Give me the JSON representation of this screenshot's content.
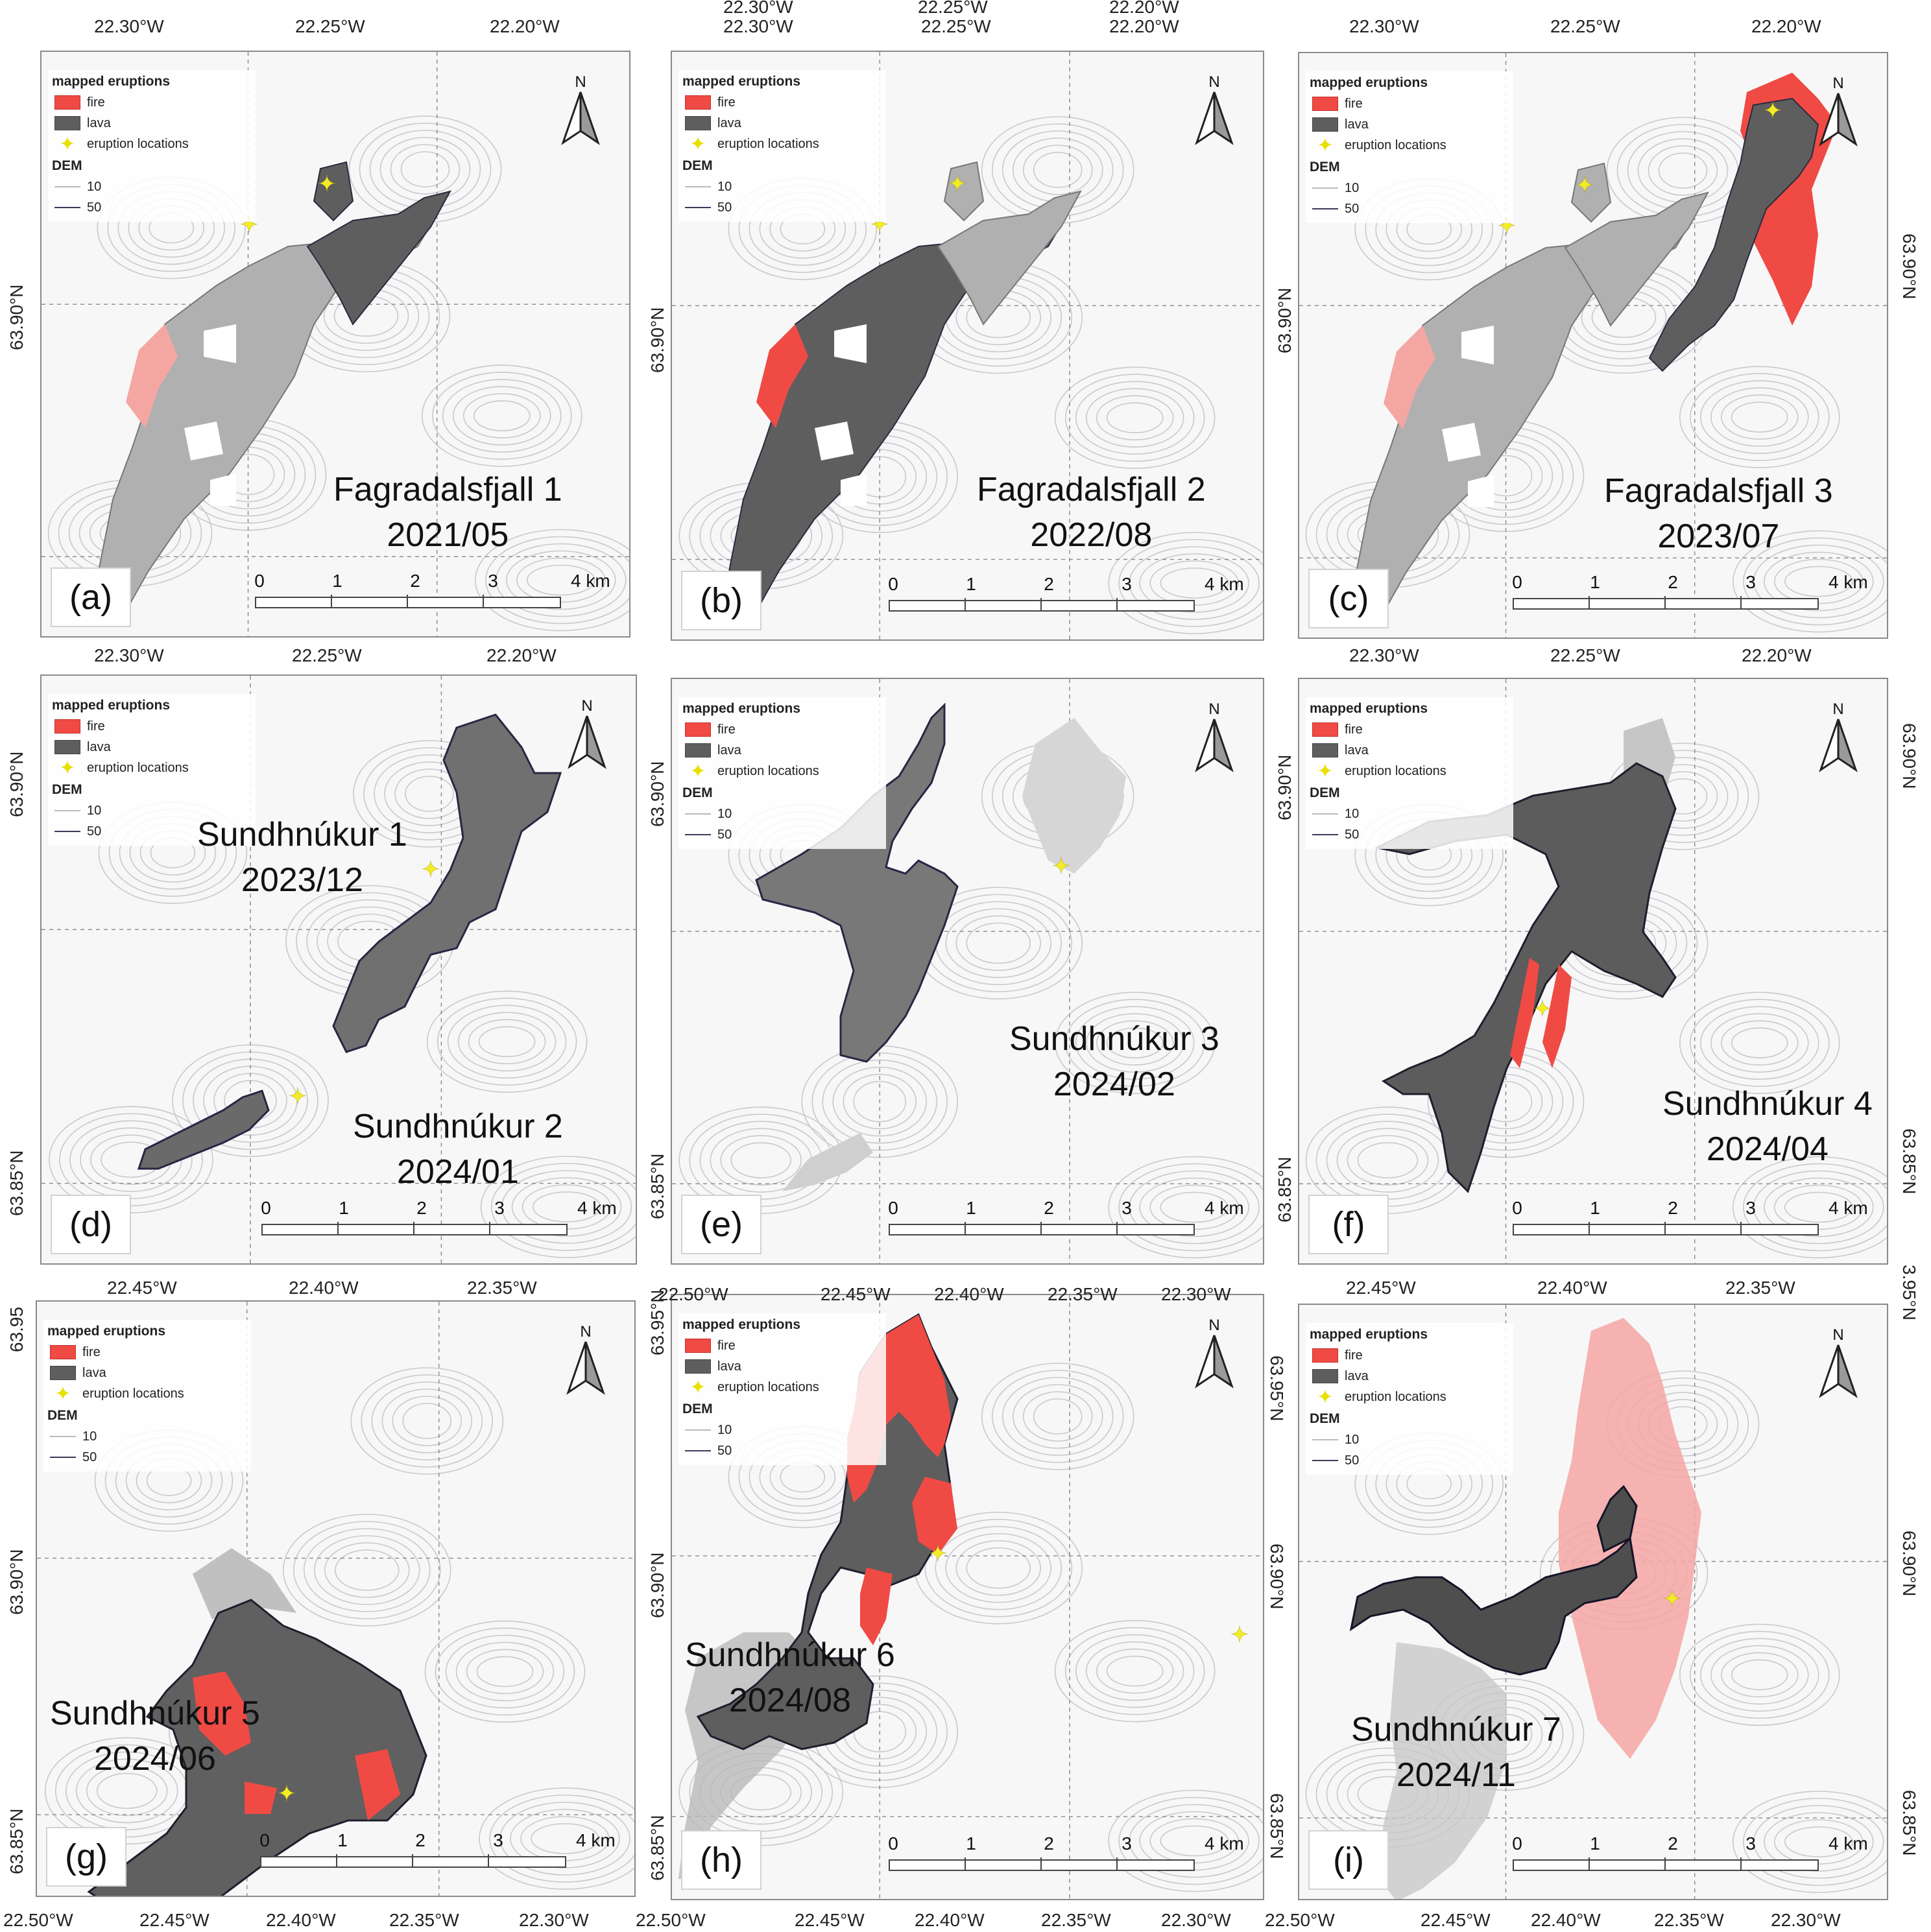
{
  "legend": {
    "heading": "mapped eruptions",
    "fire": "fire",
    "lava": "lava",
    "eruption_locations": "eruption locations",
    "dem_heading": "DEM",
    "dem_10": "10",
    "dem_50": "50"
  },
  "north_label": "N",
  "scale": {
    "t0": "0",
    "t1": "1",
    "t2": "2",
    "t3": "3",
    "t4": "4 km"
  },
  "colors": {
    "fire": "#f04a45",
    "lava": "#5e5e5e",
    "eruption_marker": "#f2ec28",
    "contour": "#c8c8d0"
  },
  "panels": [
    {
      "letter": "(a)",
      "name": "Fagradalsfjall 1",
      "date": "2021/05",
      "top_lon": [
        "22.30°W",
        "22.25°W",
        "22.20°W"
      ],
      "bottom_lon": [
        "22.30°W",
        "22.25°W",
        "22.20°W"
      ],
      "left_lat": [
        "63.90°N"
      ],
      "right_lat": []
    },
    {
      "letter": "(b)",
      "name": "Fagradalsfjall 2",
      "date": "2022/08",
      "top_lon": [
        "22.30°W",
        "22.25°W",
        "22.20°W"
      ],
      "bottom_lon": [
        "22.30°W",
        "22.25°W",
        "22.20°W"
      ],
      "left_lat": [
        "63.90°N"
      ],
      "right_lat": []
    },
    {
      "letter": "(c)",
      "name": "Fagradalsfjall 3",
      "date": "2023/07",
      "top_lon": [
        "22.30°W",
        "22.25°W",
        "22.20°W"
      ],
      "bottom_lon": [
        "22.30°W",
        "22.25°W",
        "22.20°W"
      ],
      "left_lat": [
        "63.90°N"
      ],
      "right_lat": [
        "63.90°N"
      ]
    },
    {
      "letter": "(d)",
      "name": "Sundhnúkur 1",
      "date": "2023/12",
      "name2": "Sundhnúkur 2",
      "date2": "2024/01",
      "top_lon": [],
      "bottom_lon": [
        "22.45°W",
        "22.40°W",
        "22.35°W"
      ],
      "left_lat": [
        "63.90°N",
        "63.85°N"
      ],
      "right_lat": []
    },
    {
      "letter": "(e)",
      "name": "Sundhnúkur 3",
      "date": "2024/02",
      "top_lon": [],
      "bottom_lon": [],
      "left_lat": [
        "63.90°N",
        "63.85°N"
      ],
      "right_lat": []
    },
    {
      "letter": "(f)",
      "name": "Sundhnúkur 4",
      "date": "2024/04",
      "top_lon": [],
      "bottom_lon": [
        "22.45°W",
        "22.40°W",
        "22.35°W"
      ],
      "left_lat": [
        "63.90°N",
        "63.85°N"
      ],
      "right_lat": [
        "63.90°N",
        "63.85°N"
      ]
    },
    {
      "letter": "(g)",
      "name": "Sundhnúkur 5",
      "date": "2024/06",
      "top_lon": [],
      "bottom_lon": [
        "22.50°W",
        "22.45°W",
        "22.40°W",
        "22.35°W",
        "22.30°W"
      ],
      "left_lat": [
        "63.95",
        "63.90°N",
        "63.85°N"
      ],
      "right_lat": []
    },
    {
      "letter": "(h)",
      "name": "Sundhnúkur 6",
      "date": "2024/08",
      "top_lon": [
        "22.50°W",
        "22.45°W",
        "22.40°W",
        "22.35°W",
        "22.30°W"
      ],
      "bottom_lon": [
        "22.50°W",
        "22.45°W",
        "22.40°W",
        "22.35°W",
        "22.30°W"
      ],
      "left_lat": [
        "63.95°N",
        "63.90°N",
        "63.85°N"
      ],
      "right_lat": [
        "63.95°N",
        "63.90°N",
        "63.85°N"
      ]
    },
    {
      "letter": "(i)",
      "name": "Sundhnúkur 7",
      "date": "2024/11",
      "top_lon": [],
      "bottom_lon": [
        "22.50°W",
        "22.45°W",
        "22.40°W",
        "22.35°W",
        "22.30°W"
      ],
      "left_lat": [],
      "right_lat": [
        "3.95°N",
        "63.90°N",
        "63.85°N"
      ]
    }
  ]
}
